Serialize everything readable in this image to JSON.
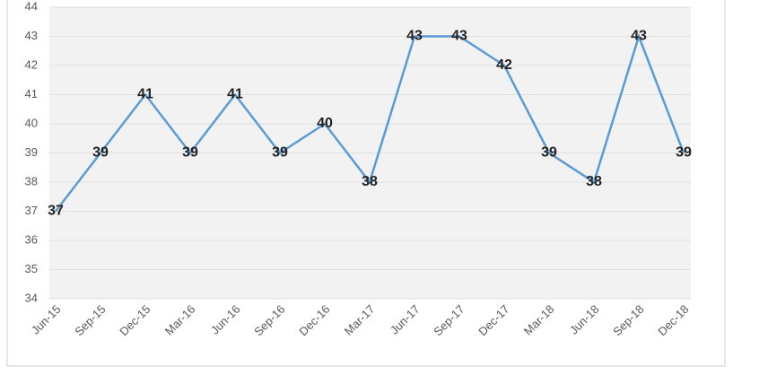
{
  "chart_data": {
    "type": "line",
    "categories": [
      "Jun-15",
      "Sep-15",
      "Dec-15",
      "Mar-16",
      "Jun-16",
      "Sep-16",
      "Dec-16",
      "Mar-17",
      "Jun-17",
      "Sep-17",
      "Dec-17",
      "Mar-18",
      "Jun-18",
      "Sep-18",
      "Dec-18"
    ],
    "values": [
      37,
      39,
      41,
      39,
      41,
      39,
      40,
      38,
      43,
      43,
      42,
      39,
      38,
      43,
      39
    ],
    "color": "#5b9bd5",
    "ylim": [
      34,
      44
    ],
    "yticks": [
      34,
      35,
      36,
      37,
      38,
      39,
      40,
      41,
      42,
      43,
      44
    ],
    "grid": true
  }
}
